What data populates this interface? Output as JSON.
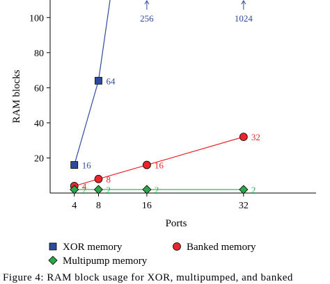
{
  "chart_data": {
    "type": "line",
    "xlabel": "Ports",
    "ylabel": "RAM blocks",
    "x_ticks": [
      4,
      8,
      16,
      32
    ],
    "y_ticks": [
      20,
      40,
      60,
      80,
      100
    ],
    "xlim": [
      0,
      44
    ],
    "ylim": [
      0,
      110
    ],
    "legend_position": "bottom",
    "series": [
      {
        "name": "XOR memory",
        "color": "#2e4a9e",
        "marker": "square",
        "x": [
          4,
          8,
          16,
          32
        ],
        "y": [
          16,
          64,
          256,
          1024
        ],
        "point_labels": [
          "16",
          "64",
          "256",
          "1024"
        ]
      },
      {
        "name": "Banked memory",
        "color": "#e8262b",
        "marker": "circle",
        "x": [
          4,
          8,
          16,
          32
        ],
        "y": [
          4,
          8,
          16,
          32
        ],
        "point_labels": [
          "4",
          "8",
          "16",
          "32"
        ]
      },
      {
        "name": "Multipump memory",
        "color": "#2aa84a",
        "marker": "diamond",
        "x": [
          4,
          8,
          16,
          32
        ],
        "y": [
          2,
          2,
          2,
          2
        ],
        "point_labels": [
          "2",
          "2",
          "2",
          "2"
        ]
      }
    ]
  },
  "caption": "Figure 4: RAM block usage for XOR, multipumped, and banked"
}
